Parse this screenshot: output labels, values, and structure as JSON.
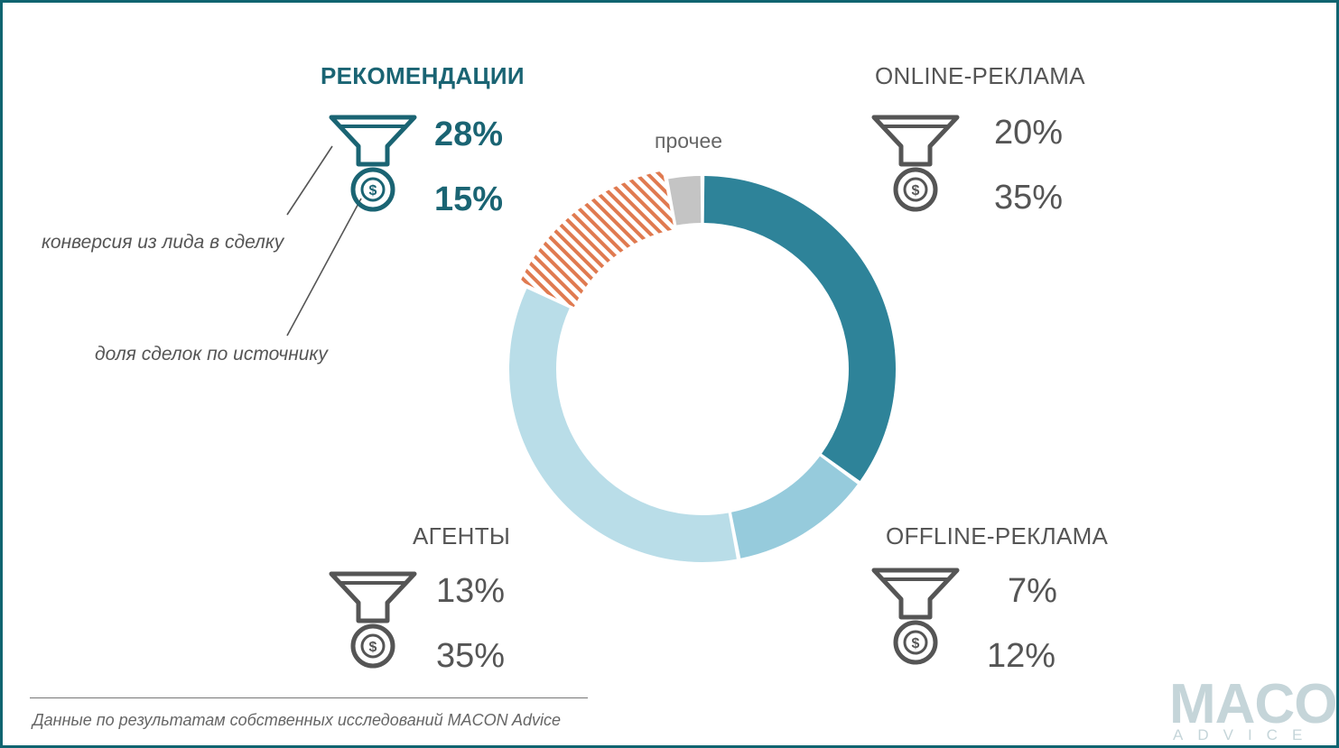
{
  "chart_data": {
    "type": "donut",
    "segments": [
      {
        "label": "ONLINE-РЕКЛАМА",
        "conversion": "20%",
        "share": "35%",
        "value": 35,
        "color": "#2e8399",
        "style": "solid"
      },
      {
        "label": "OFFLINE-РЕКЛАМА",
        "conversion": "7%",
        "share": "12%",
        "value": 12,
        "color": "#96cbdc",
        "style": "solid"
      },
      {
        "label": "АГЕНТЫ",
        "conversion": "13%",
        "share": "35%",
        "value": 35,
        "color": "#b9dde8",
        "style": "solid"
      },
      {
        "label": "РЕКОМЕНДАЦИИ",
        "conversion": "28%",
        "share": "15%",
        "value": 15,
        "color": "#e07a50",
        "style": "hatched"
      },
      {
        "label": "прочее",
        "value": 3,
        "color": "#c4c4c4",
        "style": "solid"
      }
    ],
    "annotations": {
      "conversion_note": "конверсия из лида в сделку",
      "share_note": "доля сделок по источнику"
    }
  },
  "colors": {
    "accent": "#1a6473",
    "text": "#555555",
    "icon": "#555555"
  },
  "icons": {
    "funnel": "funnel-icon",
    "coin": "dollar-coin-icon"
  },
  "footer": {
    "source": "Данные по результатам собственных исследований MACON Advice"
  },
  "logo": {
    "main": "MACON",
    "sub": "ADVICE"
  }
}
